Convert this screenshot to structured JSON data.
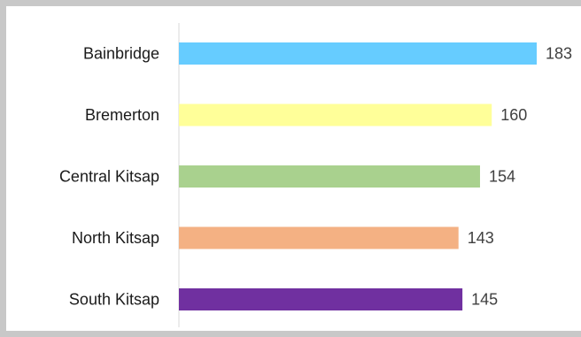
{
  "chart_data": {
    "type": "bar",
    "orientation": "horizontal",
    "categories": [
      "Bainbridge",
      "Bremerton",
      "Central Kitsap",
      "North Kitsap",
      "South Kitsap"
    ],
    "values": [
      183,
      160,
      154,
      143,
      145
    ],
    "colors": [
      "#66CCFF",
      "#FFFF99",
      "#A9D18E",
      "#F4B183",
      "#7030A0"
    ],
    "xlim": [
      0,
      183
    ],
    "grid": false,
    "legend": "none",
    "title": "",
    "xlabel": "",
    "ylabel": ""
  }
}
